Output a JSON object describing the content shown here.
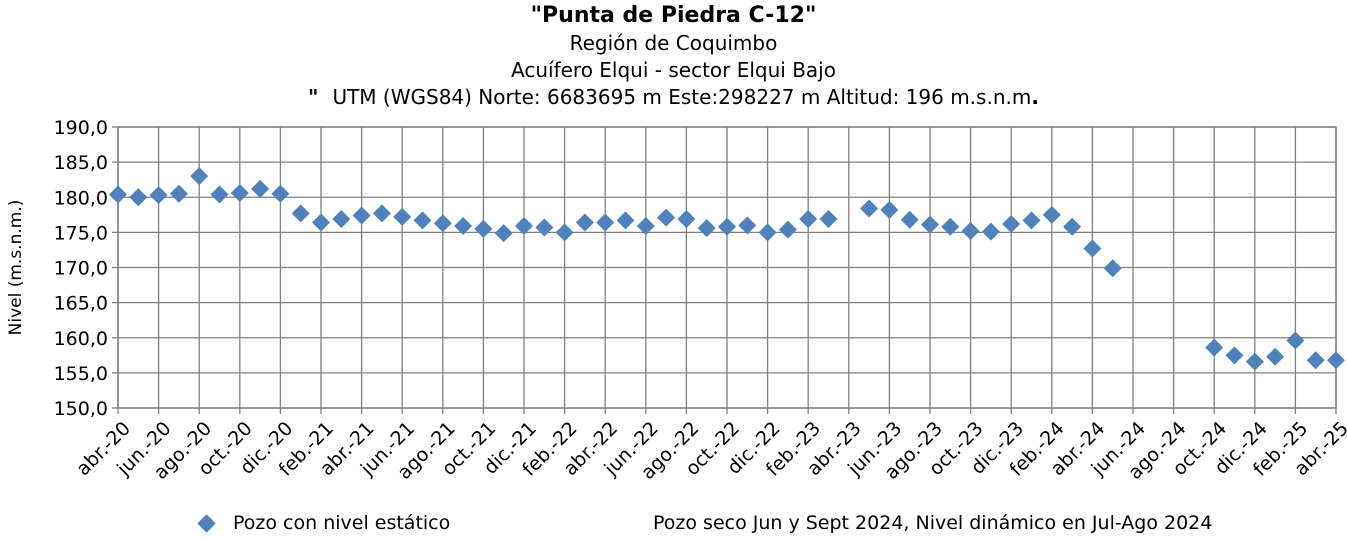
{
  "header": {
    "title": "\"Punta de Piedra C-12\"",
    "subtitle1": "Región de Coquimbo",
    "subtitle2": "Acuífero Elqui - sector Elqui Bajo",
    "coords_prefix": "\"",
    "coords": "UTM (WGS84) Norte: 6683695 m   Este:298227 m   Altitud: 196 m.s.n.m",
    "coords_suffix": "."
  },
  "legend": {
    "label": "Pozo con nivel estático",
    "color": "#4f81bd"
  },
  "note": "Pozo seco Jun y Sept 2024, Nivel dinámico en Jul-Ago 2024",
  "chart_data": {
    "type": "scatter",
    "ylabel": "Nivel (m.s.n.m.)",
    "ylim": [
      150,
      190
    ],
    "y_ticks": [
      "150,0",
      "155,0",
      "160,0",
      "165,0",
      "170,0",
      "175,0",
      "180,0",
      "185,0",
      "190,0"
    ],
    "x_start": "2020-04",
    "x_end": "2025-04",
    "x_tick_labels": [
      "abr.-20",
      "jun.-20",
      "ago.-20",
      "oct.-20",
      "dic.-20",
      "feb.-21",
      "abr.-21",
      "jun.-21",
      "ago.-21",
      "oct.-21",
      "dic.-21",
      "feb.-22",
      "abr.-22",
      "jun.-22",
      "ago.-22",
      "oct.-22",
      "dic.-22",
      "feb.-23",
      "abr.-23",
      "jun.-23",
      "ago.-23",
      "oct.-23",
      "dic.-23",
      "feb.-24",
      "abr.-24",
      "jun.-24",
      "ago.-24",
      "oct.-24",
      "dic.-24",
      "feb.-25",
      "abr.-25"
    ],
    "grid": true,
    "series": [
      {
        "name": "Pozo con nivel estático",
        "color": "#4f81bd",
        "points": [
          {
            "x": "2020-04",
            "y": 180.4
          },
          {
            "x": "2020-05",
            "y": 180.0
          },
          {
            "x": "2020-06",
            "y": 180.3
          },
          {
            "x": "2020-07",
            "y": 180.5
          },
          {
            "x": "2020-08",
            "y": 183.0
          },
          {
            "x": "2020-09",
            "y": 180.4
          },
          {
            "x": "2020-10",
            "y": 180.6
          },
          {
            "x": "2020-11",
            "y": 181.2
          },
          {
            "x": "2020-12",
            "y": 180.5
          },
          {
            "x": "2021-01",
            "y": 177.7
          },
          {
            "x": "2021-02",
            "y": 176.4
          },
          {
            "x": "2021-03",
            "y": 176.9
          },
          {
            "x": "2021-04",
            "y": 177.4
          },
          {
            "x": "2021-05",
            "y": 177.7
          },
          {
            "x": "2021-06",
            "y": 177.2
          },
          {
            "x": "2021-07",
            "y": 176.7
          },
          {
            "x": "2021-08",
            "y": 176.3
          },
          {
            "x": "2021-09",
            "y": 175.9
          },
          {
            "x": "2021-10",
            "y": 175.5
          },
          {
            "x": "2021-11",
            "y": 174.9
          },
          {
            "x": "2021-12",
            "y": 175.9
          },
          {
            "x": "2022-01",
            "y": 175.7
          },
          {
            "x": "2022-02",
            "y": 175.0
          },
          {
            "x": "2022-03",
            "y": 176.4
          },
          {
            "x": "2022-04",
            "y": 176.4
          },
          {
            "x": "2022-05",
            "y": 176.7
          },
          {
            "x": "2022-06",
            "y": 175.9
          },
          {
            "x": "2022-07",
            "y": 177.1
          },
          {
            "x": "2022-08",
            "y": 176.9
          },
          {
            "x": "2022-09",
            "y": 175.6
          },
          {
            "x": "2022-10",
            "y": 175.8
          },
          {
            "x": "2022-11",
            "y": 176.0
          },
          {
            "x": "2022-12",
            "y": 175.0
          },
          {
            "x": "2023-01",
            "y": 175.4
          },
          {
            "x": "2023-02",
            "y": 176.9
          },
          {
            "x": "2023-03",
            "y": 176.9
          },
          {
            "x": "2023-05",
            "y": 178.4
          },
          {
            "x": "2023-06",
            "y": 178.2
          },
          {
            "x": "2023-07",
            "y": 176.8
          },
          {
            "x": "2023-08",
            "y": 176.1
          },
          {
            "x": "2023-09",
            "y": 175.8
          },
          {
            "x": "2023-10",
            "y": 175.2
          },
          {
            "x": "2023-11",
            "y": 175.1
          },
          {
            "x": "2023-12",
            "y": 176.2
          },
          {
            "x": "2024-01",
            "y": 176.7
          },
          {
            "x": "2024-02",
            "y": 177.5
          },
          {
            "x": "2024-03",
            "y": 175.8
          },
          {
            "x": "2024-04",
            "y": 172.7
          },
          {
            "x": "2024-05",
            "y": 169.9
          },
          {
            "x": "2024-10",
            "y": 158.6
          },
          {
            "x": "2024-11",
            "y": 157.5
          },
          {
            "x": "2024-12",
            "y": 156.6
          },
          {
            "x": "2025-01",
            "y": 157.3
          },
          {
            "x": "2025-02",
            "y": 159.6
          },
          {
            "x": "2025-03",
            "y": 156.8
          },
          {
            "x": "2025-04",
            "y": 156.8
          }
        ]
      }
    ]
  }
}
